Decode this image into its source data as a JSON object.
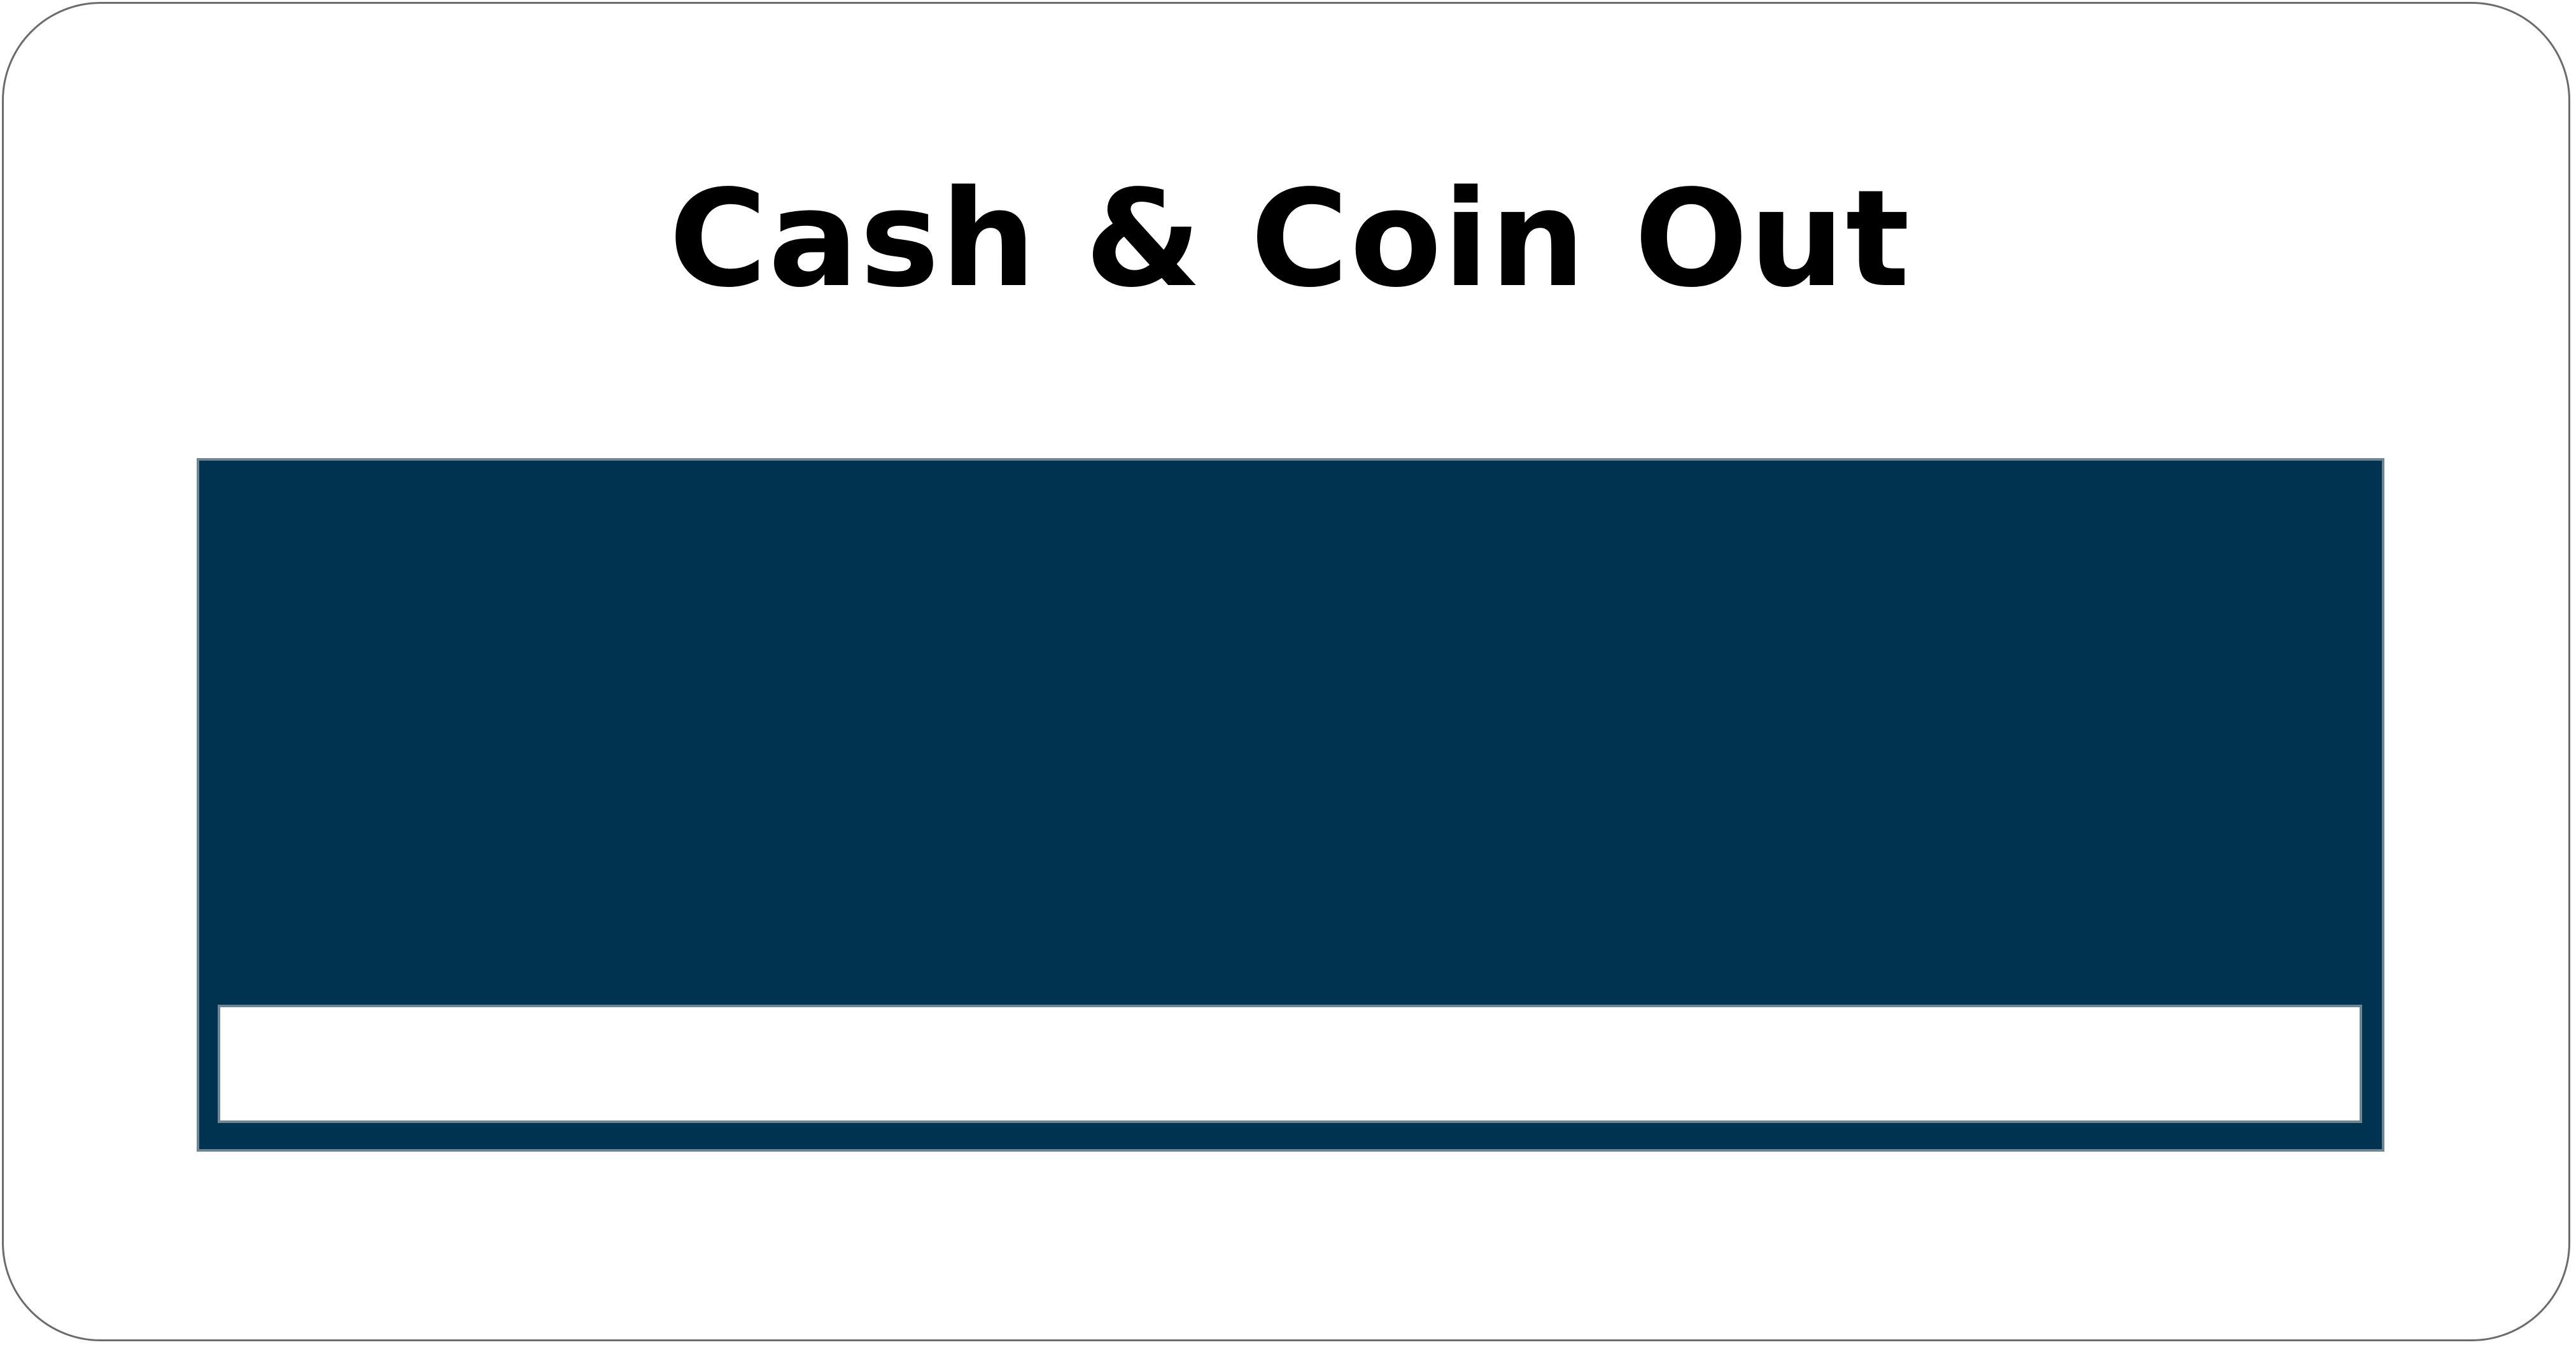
{
  "screen": {
    "title": "Cash & Coin Out"
  },
  "panel": {
    "display_value": ""
  },
  "colors": {
    "panel_background": "#003350",
    "panel_border": "#6e8694",
    "screen_border": "#6b6b6b",
    "title_text": "#000000"
  }
}
